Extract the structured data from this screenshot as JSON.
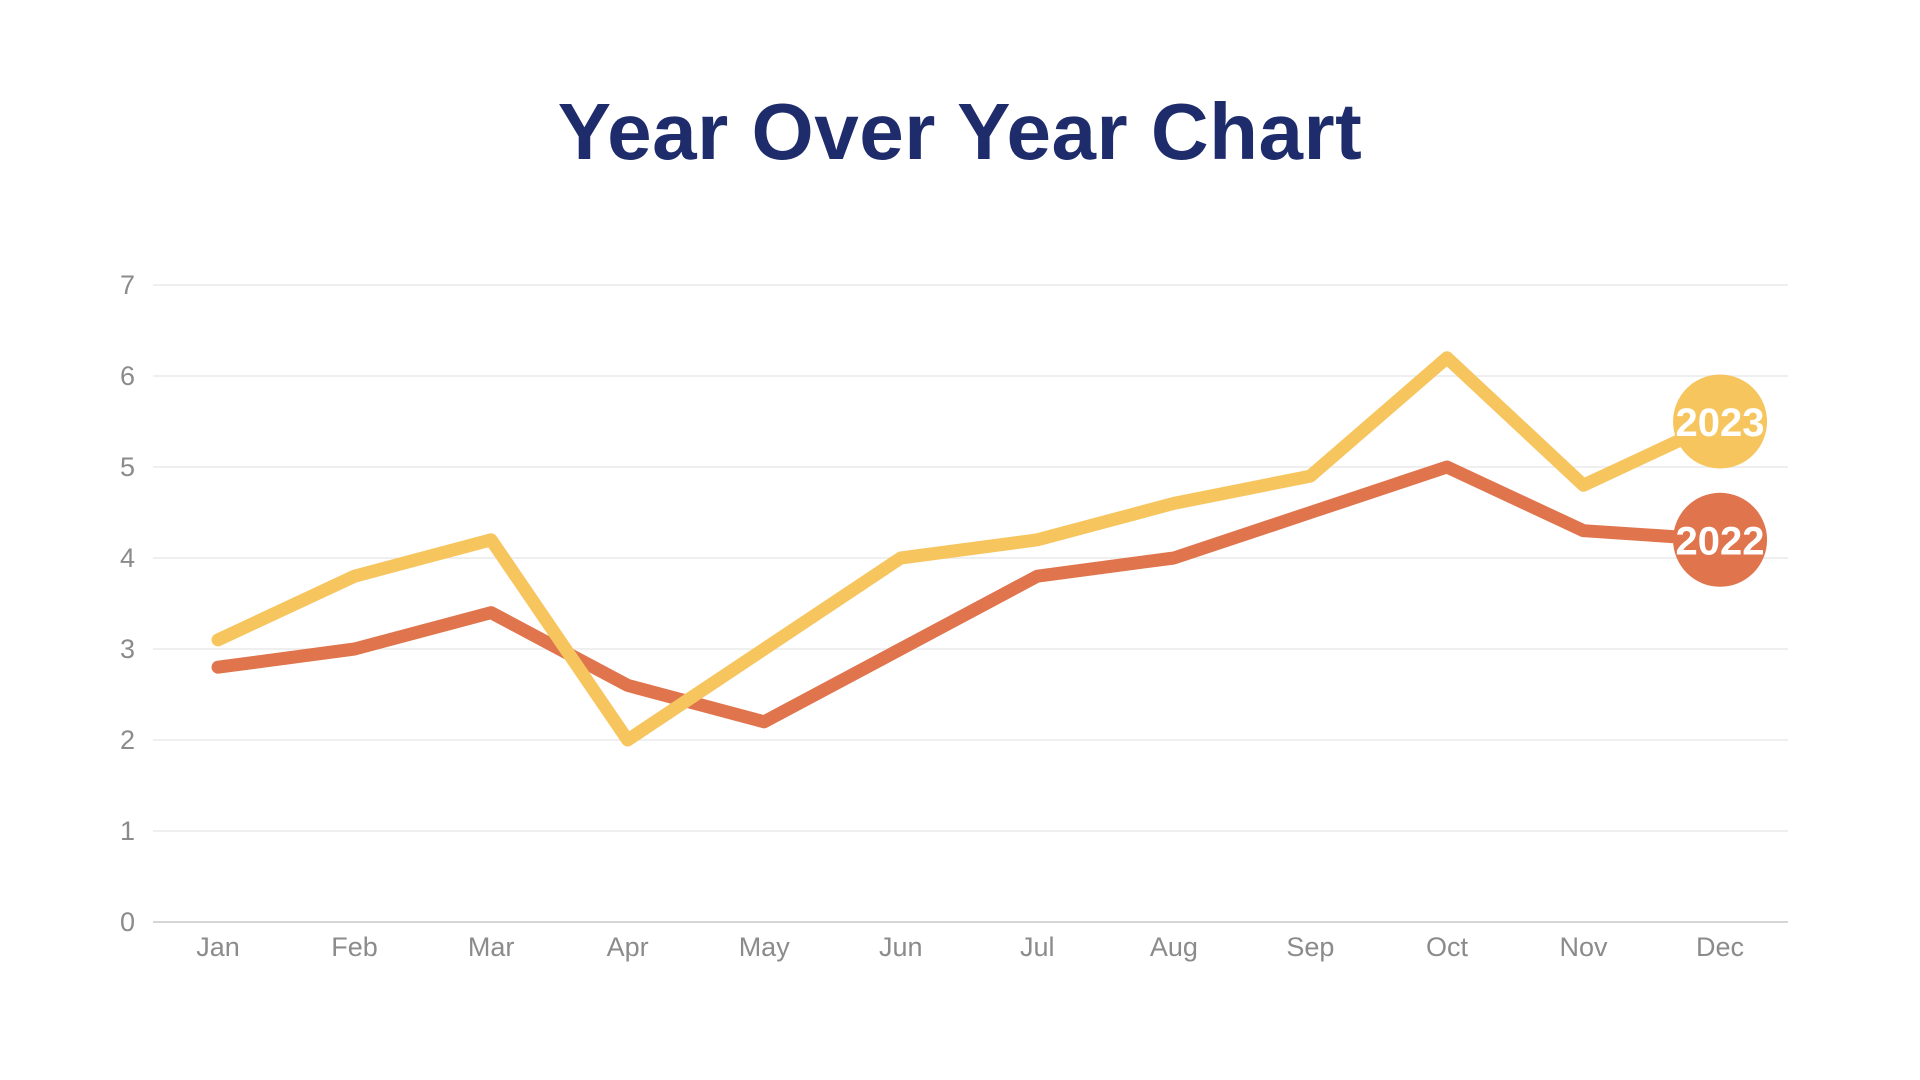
{
  "page": {
    "background_color": "#ffffff"
  },
  "chart_data": {
    "type": "line",
    "title": "Year Over Year Chart",
    "title_color": "#1e2c6b",
    "xlabel": "",
    "ylabel": "",
    "x": [
      "Jan",
      "Feb",
      "Mar",
      "Apr",
      "May",
      "Jun",
      "Jul",
      "Aug",
      "Sep",
      "Oct",
      "Nov",
      "Dec"
    ],
    "series": [
      {
        "name": "2022",
        "badge_label": "2022",
        "color": "#e0744c",
        "values": [
          2.8,
          3.0,
          3.4,
          2.6,
          2.2,
          3.0,
          3.8,
          4.0,
          4.5,
          5.0,
          4.3,
          4.2
        ]
      },
      {
        "name": "2023",
        "badge_label": "2023",
        "color": "#f6c55e",
        "values": [
          3.1,
          3.8,
          4.2,
          2.0,
          3.0,
          4.0,
          4.2,
          4.6,
          4.9,
          6.2,
          4.8,
          5.5
        ]
      }
    ],
    "ylim": [
      0,
      7
    ],
    "yticks": [
      0,
      1,
      2,
      3,
      4,
      5,
      6,
      7
    ],
    "grid": "horizontal",
    "legend_style": "end-of-line circular badges with white year text",
    "axis_text_color": "#8b8b8b",
    "grid_color": "#eaeaea",
    "axis_line_color": "#d6d6d6",
    "badge_text_color": "#ffffff"
  }
}
